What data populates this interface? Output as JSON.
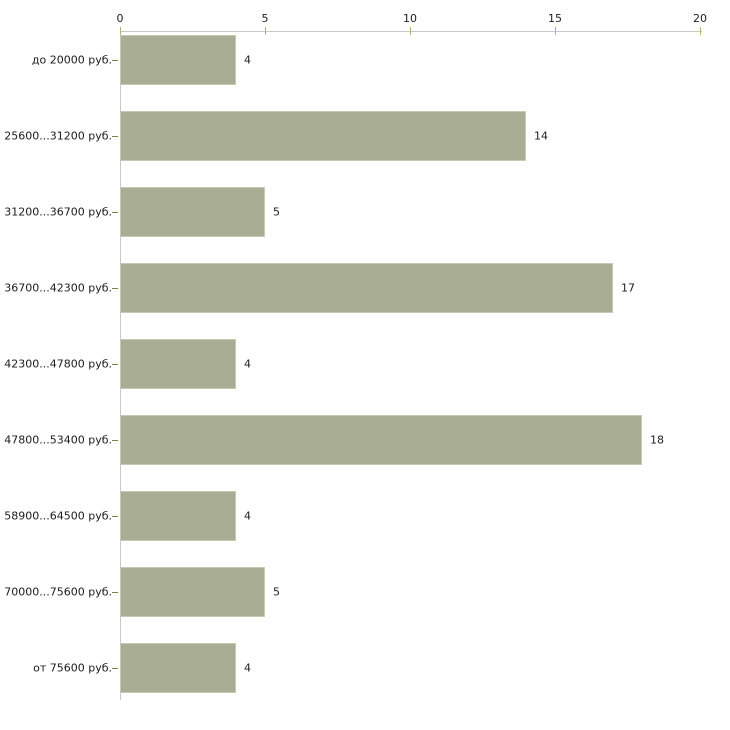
{
  "chart_data": {
    "type": "bar",
    "orientation": "horizontal",
    "title": "",
    "xlabel": "",
    "ylabel": "",
    "categories": [
      "до 20000 руб.",
      "25600...31200 руб.",
      "31200...36700 руб.",
      "36700...42300 руб.",
      "42300...47800 руб.",
      "47800...53400 руб.",
      "58900...64500 руб.",
      "70000...75600 руб.",
      "от 75600 руб."
    ],
    "values": [
      4,
      14,
      5,
      17,
      4,
      18,
      4,
      5,
      4
    ],
    "value_labels": [
      "4",
      "14",
      "5",
      "17",
      "4",
      "18",
      "4",
      "5",
      "4"
    ],
    "x_ticks": [
      "0",
      "5",
      "10",
      "15",
      "20"
    ],
    "x_tick_values": [
      0,
      5,
      10,
      15,
      20
    ],
    "xlim": [
      0,
      20
    ],
    "grid": false,
    "legend": null,
    "axis_position": "top",
    "colors": {
      "bar_fill": "#a9ad94",
      "bar_border": "#c6c9b3",
      "axis_line": "#c9c9c9",
      "x_tick_mark": "#b0b372",
      "y_tick_mark": "#7d7f4a",
      "text": "#1c1c1c"
    }
  }
}
